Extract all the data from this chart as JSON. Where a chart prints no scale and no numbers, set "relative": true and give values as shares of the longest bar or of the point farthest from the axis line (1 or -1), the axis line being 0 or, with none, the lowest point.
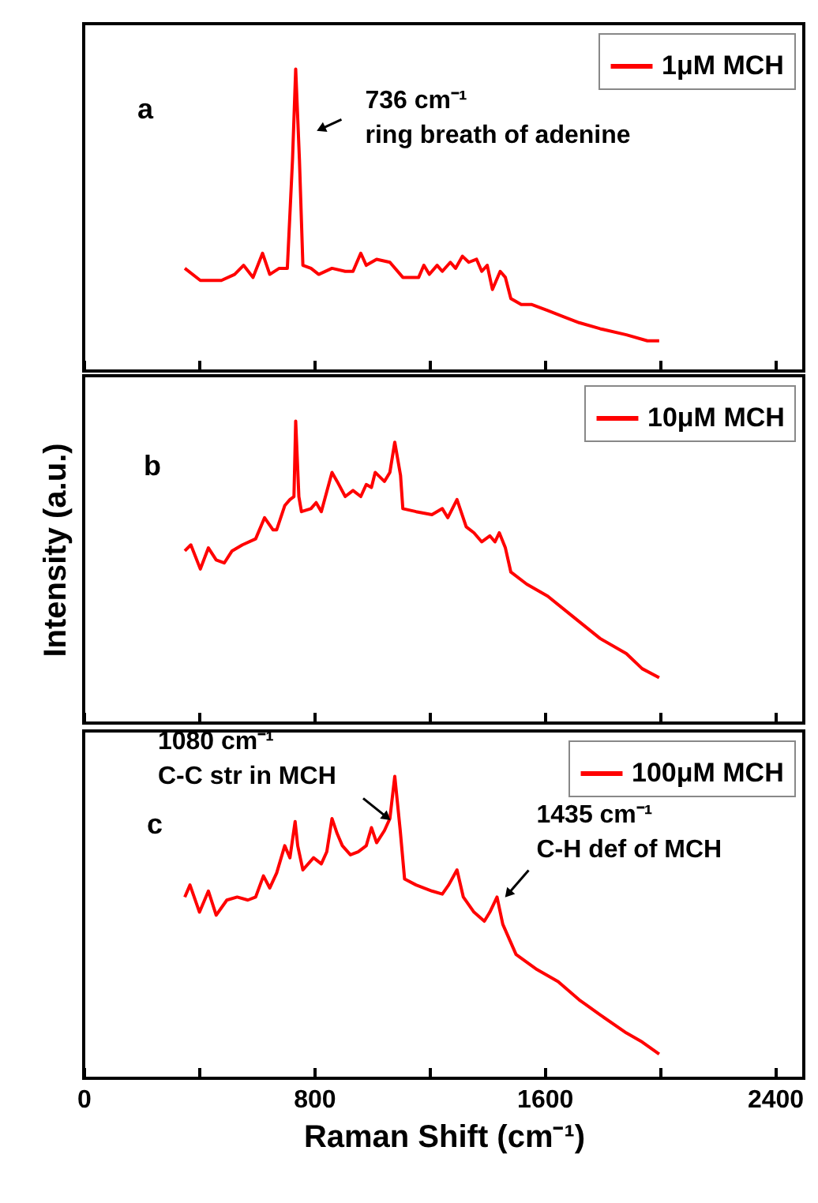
{
  "chart_data": [
    {
      "type": "line",
      "relative": true,
      "legend": "top right",
      "tick_labels": false,
      "xlim": [
        0,
        2500
      ],
      "xticks": [
        0,
        {
          "value": 400,
          "label": null
        },
        800,
        {
          "value": 1200,
          "label": null
        },
        1600,
        {
          "value": 2000,
          "label": null
        },
        2400
      ],
      "x": [
        351,
        405,
        478,
        524,
        555,
        588,
        621,
        646,
        679,
        707,
        725,
        736,
        749,
        761,
        789,
        816,
        862,
        908,
        935,
        962,
        981,
        1017,
        1063,
        1108,
        1163,
        1181,
        1200,
        1227,
        1245,
        1273,
        1291,
        1315,
        1337,
        1364,
        1382,
        1401,
        1419,
        1446,
        1464,
        1483,
        1519,
        1556,
        1611,
        1665,
        1720,
        1793,
        1884,
        1957,
        1998
      ],
      "series": [
        {
          "name": "1μM MCH",
          "color": "#ff0000",
          "values": [
            0.34,
            0.3,
            0.3,
            0.32,
            0.35,
            0.31,
            0.39,
            0.32,
            0.34,
            0.34,
            0.7,
            1.0,
            0.7,
            0.35,
            0.34,
            0.32,
            0.34,
            0.33,
            0.33,
            0.39,
            0.35,
            0.37,
            0.36,
            0.31,
            0.31,
            0.35,
            0.32,
            0.35,
            0.33,
            0.36,
            0.34,
            0.38,
            0.36,
            0.37,
            0.33,
            0.35,
            0.27,
            0.33,
            0.31,
            0.24,
            0.22,
            0.22,
            0.2,
            0.18,
            0.16,
            0.14,
            0.12,
            0.1,
            0.1
          ]
        }
      ],
      "annotations": [
        "a",
        {
          "text": "736 cm⁻¹\nring breath of  adenine",
          "x": 736,
          "y": 1.0
        }
      ]
    },
    {
      "type": "line",
      "relative": true,
      "legend": "top right",
      "tick_labels": false,
      "ylabel": "Intensity (a.u.)",
      "xlim": [
        0,
        2500
      ],
      "xticks": [
        0,
        {
          "value": 400,
          "label": null
        },
        800,
        {
          "value": 1200,
          "label": null
        },
        1600,
        {
          "value": 2000,
          "label": null
        },
        2400
      ],
      "x": [
        351,
        372,
        405,
        433,
        460,
        488,
        515,
        551,
        597,
        628,
        657,
        670,
        698,
        716,
        730,
        736,
        747,
        756,
        789,
        807,
        825,
        862,
        880,
        908,
        935,
        962,
        981,
        999,
        1012,
        1044,
        1063,
        1080,
        1100,
        1108,
        1154,
        1209,
        1245,
        1264,
        1296,
        1328,
        1355,
        1382,
        1410,
        1428,
        1443,
        1464,
        1483,
        1538,
        1611,
        1702,
        1793,
        1884,
        1939,
        1998
      ],
      "series": [
        {
          "name": "10μM MCH",
          "color": "#ff0000",
          "values": [
            0.57,
            0.59,
            0.51,
            0.58,
            0.54,
            0.53,
            0.57,
            0.59,
            0.61,
            0.68,
            0.64,
            0.64,
            0.72,
            0.74,
            0.75,
            1.0,
            0.75,
            0.7,
            0.71,
            0.73,
            0.7,
            0.83,
            0.8,
            0.75,
            0.77,
            0.75,
            0.79,
            0.78,
            0.83,
            0.8,
            0.83,
            0.93,
            0.82,
            0.71,
            0.7,
            0.69,
            0.71,
            0.68,
            0.74,
            0.65,
            0.63,
            0.6,
            0.62,
            0.6,
            0.63,
            0.58,
            0.5,
            0.46,
            0.42,
            0.35,
            0.28,
            0.23,
            0.18,
            0.15
          ]
        }
      ],
      "annotations": [
        "b"
      ]
    },
    {
      "type": "line",
      "relative": true,
      "legend": "top right",
      "tick_labels": "x",
      "xlabel": "Raman Shift (cm⁻¹)",
      "xlim": [
        0,
        2500
      ],
      "xticks": [
        0,
        {
          "value": 400,
          "label": null
        },
        800,
        {
          "value": 1200,
          "label": null
        },
        1600,
        {
          "value": 2000,
          "label": null
        },
        2400
      ],
      "x": [
        351,
        369,
        402,
        433,
        460,
        497,
        533,
        570,
        597,
        624,
        646,
        670,
        698,
        716,
        734,
        743,
        761,
        798,
        825,
        844,
        862,
        880,
        898,
        926,
        953,
        981,
        999,
        1017,
        1044,
        1063,
        1080,
        1099,
        1114,
        1154,
        1209,
        1245,
        1267,
        1296,
        1318,
        1355,
        1391,
        1410,
        1435,
        1455,
        1501,
        1574,
        1647,
        1720,
        1793,
        1884,
        1939,
        1998
      ],
      "series": [
        {
          "name": "100μM MCH",
          "color": "#ff0000",
          "values": [
            0.6,
            0.64,
            0.55,
            0.62,
            0.54,
            0.59,
            0.6,
            0.59,
            0.6,
            0.67,
            0.63,
            0.68,
            0.77,
            0.73,
            0.85,
            0.77,
            0.69,
            0.73,
            0.71,
            0.75,
            0.86,
            0.81,
            0.77,
            0.74,
            0.75,
            0.77,
            0.83,
            0.78,
            0.82,
            0.86,
            1.0,
            0.82,
            0.66,
            0.64,
            0.62,
            0.61,
            0.64,
            0.69,
            0.6,
            0.55,
            0.52,
            0.55,
            0.6,
            0.51,
            0.41,
            0.36,
            0.32,
            0.26,
            0.21,
            0.15,
            0.12,
            0.08
          ]
        }
      ],
      "annotations": [
        "c",
        {
          "text": "1080 cm⁻¹\nC-C str in MCH",
          "x": 1080,
          "y": 1.0
        },
        {
          "text": "1435 cm⁻¹\nC-H def of MCH",
          "x": 1435,
          "y": 0.6
        }
      ]
    }
  ]
}
